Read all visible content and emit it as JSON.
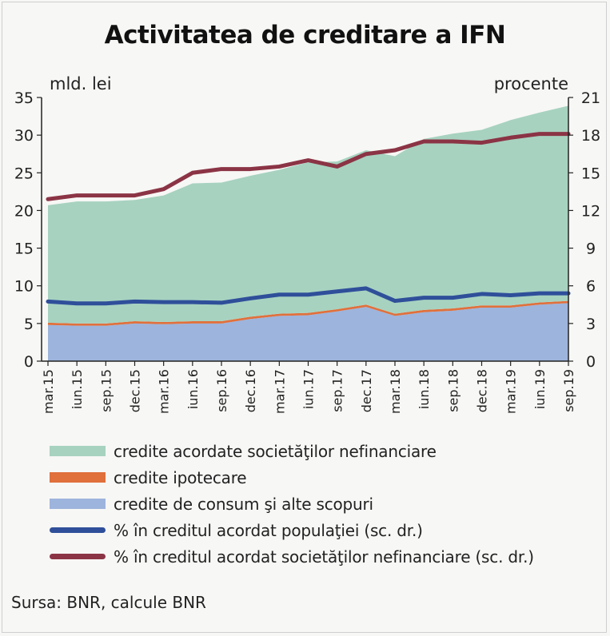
{
  "chart_data": {
    "type": "area",
    "title": "Activitatea de creditare a IFN",
    "ylabel_left": "mld. lei",
    "ylabel_right": "procente",
    "ylim_left": [
      0,
      35
    ],
    "yticks_left": [
      0,
      5,
      10,
      15,
      20,
      25,
      30,
      35
    ],
    "ylim_right": [
      0,
      21
    ],
    "yticks_right": [
      0,
      3,
      6,
      9,
      12,
      15,
      18,
      21
    ],
    "categories": [
      "mar.15",
      "iun.15",
      "sep.15",
      "dec.15",
      "mar.16",
      "iun.16",
      "sep.16",
      "dec.16",
      "mar.17",
      "iun.17",
      "sep.17",
      "dec.17",
      "mar.18",
      "iun.18",
      "sep.18",
      "dec.18",
      "mar.19",
      "iun.19",
      "sep.19"
    ],
    "stacked_areas": [
      {
        "name": "credite de consum şi alte scopuri",
        "color": "#9db4dc",
        "values": [
          4.8,
          4.7,
          4.7,
          5.0,
          4.9,
          5.0,
          5.0,
          5.6,
          6.0,
          6.1,
          6.6,
          7.2,
          6.0,
          6.5,
          6.7,
          7.1,
          7.1,
          7.5,
          7.7
        ]
      },
      {
        "name": "credite ipotecare",
        "color": "#e0703c",
        "values": [
          0.3,
          0.3,
          0.3,
          0.3,
          0.3,
          0.3,
          0.3,
          0.3,
          0.3,
          0.3,
          0.3,
          0.3,
          0.3,
          0.3,
          0.3,
          0.3,
          0.3,
          0.3,
          0.3
        ]
      },
      {
        "name": "credite acordate societăţilor nefinanciare",
        "color": "#a7d2c0",
        "values": [
          15.6,
          16.2,
          16.2,
          16.1,
          16.8,
          18.3,
          18.4,
          18.7,
          19.1,
          20.0,
          19.6,
          20.5,
          20.9,
          22.7,
          23.2,
          23.3,
          24.6,
          25.2,
          25.9
        ]
      }
    ],
    "lines": [
      {
        "name": "% în creditul acordat populaţiei (sc. dr.)",
        "axis": "right",
        "color": "#2f4f9a",
        "values": [
          4.75,
          4.6,
          4.6,
          4.75,
          4.7,
          4.7,
          4.65,
          5.0,
          5.3,
          5.3,
          5.55,
          5.8,
          4.8,
          5.05,
          5.05,
          5.35,
          5.25,
          5.4,
          5.4
        ]
      },
      {
        "name": "% în creditul acordat societăţilor nefinanciare (sc. dr.)",
        "axis": "right",
        "color": "#8b3445",
        "values": [
          12.9,
          13.2,
          13.2,
          13.2,
          13.7,
          15.0,
          15.3,
          15.3,
          15.5,
          16.0,
          15.5,
          16.5,
          16.8,
          17.5,
          17.5,
          17.4,
          17.8,
          18.1,
          18.1
        ]
      }
    ],
    "grid": false,
    "legend_position": "bottom"
  },
  "source": "Sursa: BNR, calcule BNR"
}
